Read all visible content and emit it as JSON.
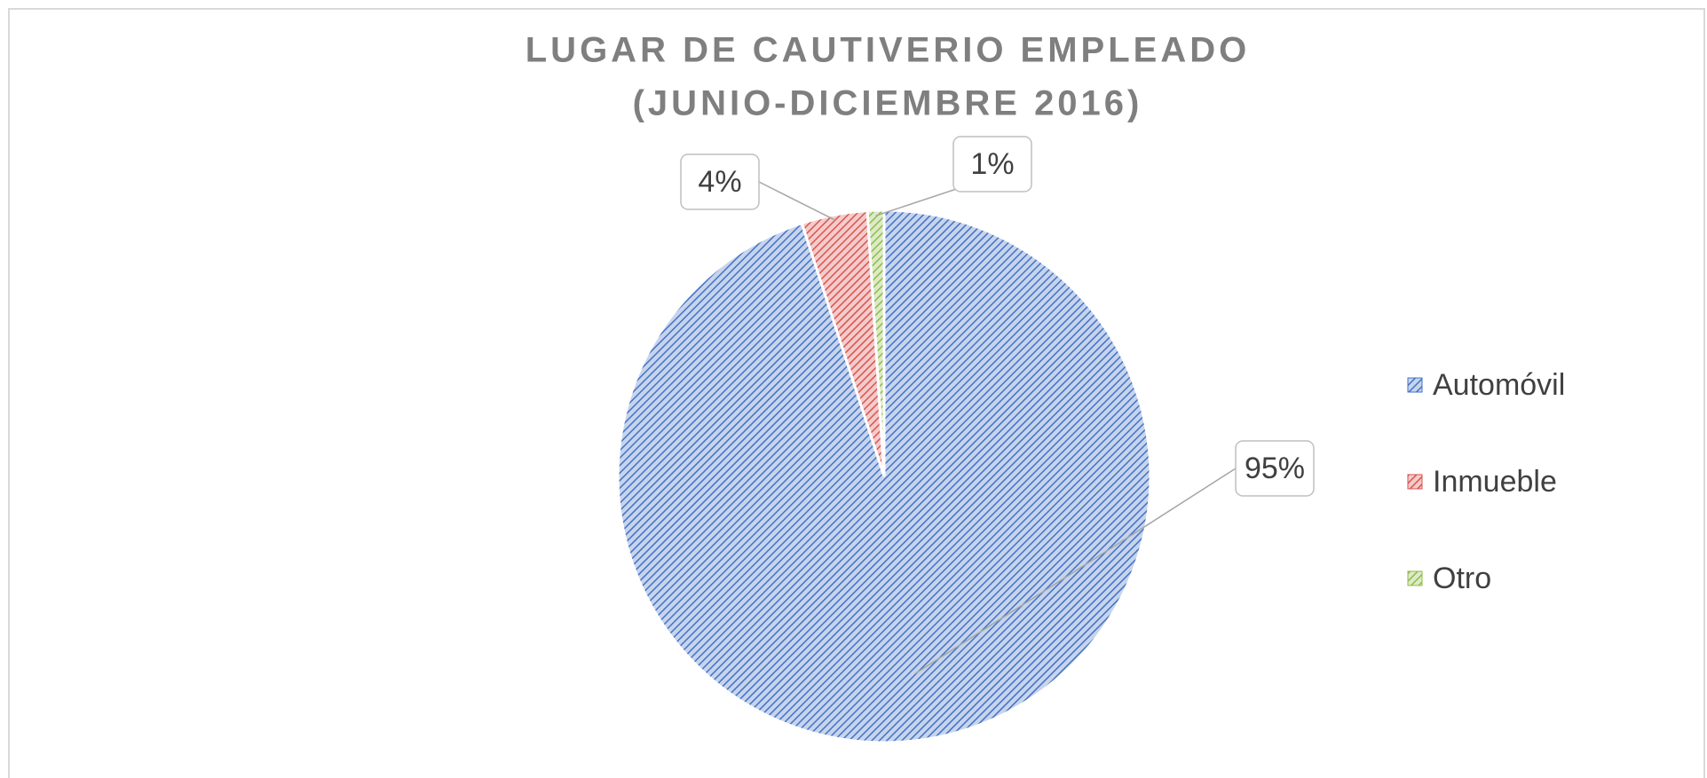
{
  "chart_data": {
    "type": "pie",
    "title": [
      "LUGAR DE CAUTIVERIO EMPLEADO",
      "(JUNIO-DICIEMBRE 2016)"
    ],
    "categories": [
      "Automóvil",
      "Inmueble",
      "Otro"
    ],
    "values": [
      95,
      4,
      1
    ],
    "value_labels": [
      "95%",
      "4%",
      "1%"
    ],
    "colors": [
      "#4472c4",
      "#d9534f",
      "#8fbc4a"
    ],
    "legend": "right"
  }
}
